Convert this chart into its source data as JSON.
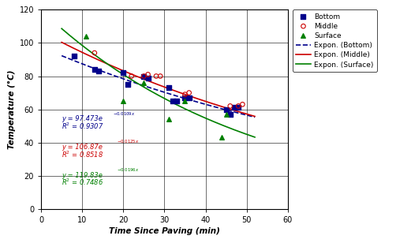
{
  "title": "",
  "xlabel": "Time Since Paving (min)",
  "ylabel": "Temperature (°C)",
  "xlim": [
    0,
    60
  ],
  "ylim": [
    0,
    120
  ],
  "xticks": [
    0,
    10,
    20,
    30,
    40,
    50,
    60
  ],
  "yticks": [
    0,
    20,
    40,
    60,
    80,
    100,
    120
  ],
  "bottom_x": [
    8,
    13,
    14,
    20,
    21,
    25,
    26,
    31,
    32,
    33,
    35,
    36,
    45,
    46,
    47,
    48
  ],
  "bottom_y": [
    92,
    84,
    83,
    82,
    75,
    80,
    79,
    73,
    65,
    65,
    67,
    67,
    60,
    57,
    61,
    61
  ],
  "middle_x": [
    13,
    22,
    25,
    26,
    28,
    29,
    35,
    36,
    46,
    48,
    49
  ],
  "middle_y": [
    94,
    80,
    80,
    81,
    80,
    80,
    69,
    70,
    62,
    62,
    63
  ],
  "surface_x": [
    11,
    20,
    25,
    31,
    35,
    44,
    45
  ],
  "surface_y": [
    104,
    65,
    76,
    54,
    65,
    43,
    57
  ],
  "bottom_color": "#00008B",
  "middle_color": "#CC0000",
  "surface_color": "#008000",
  "bottom_a": 97.473,
  "bottom_b": -0.0109,
  "middle_a": 106.87,
  "middle_b": -0.0125,
  "surface_a": 119.83,
  "surface_b": -0.0196,
  "bg_color": "#FFFFFF",
  "plot_bg_color": "#FFFFFF"
}
